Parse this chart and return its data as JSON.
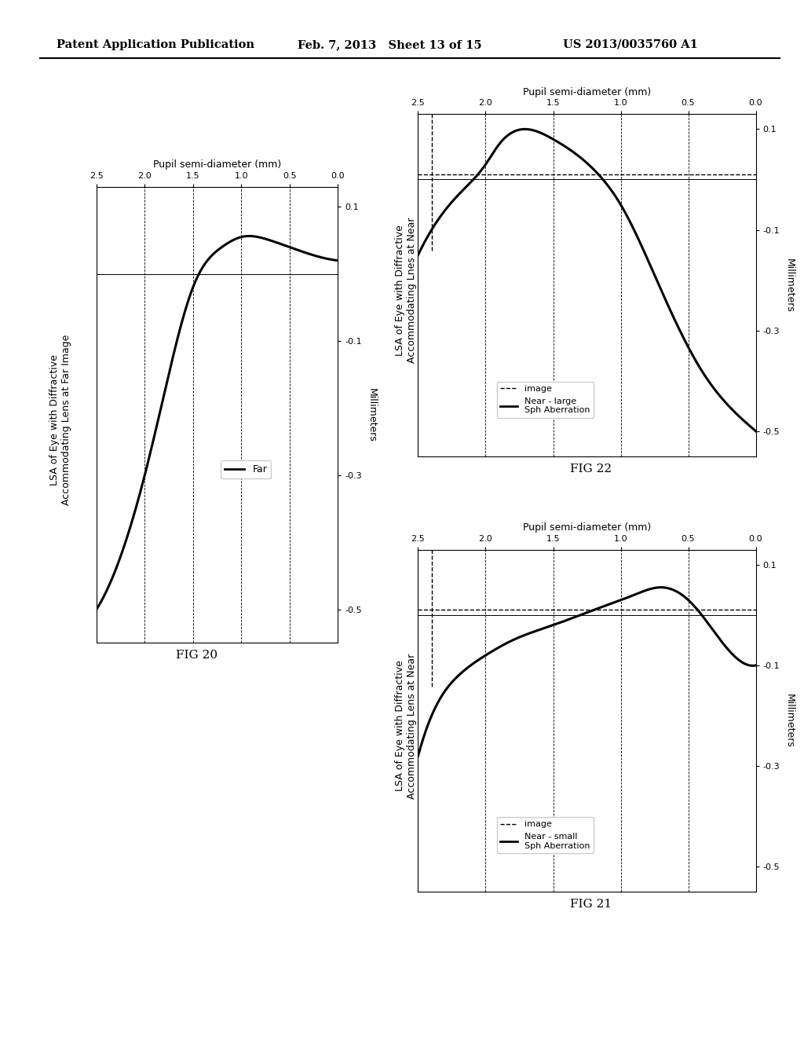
{
  "header_left": "Patent Application Publication",
  "header_mid": "Feb. 7, 2013   Sheet 13 of 15",
  "header_right": "US 2013/0035760 A1",
  "fig20": {
    "title_line1": "LSA of Eye with Diffractive",
    "title_line2": "Accommodating Lens at Far Image",
    "xlabel": "Pupil semi-diameter (mm)",
    "ylabel": "Millimeters",
    "legend_label": "Far",
    "fignum": "FIG 20"
  },
  "fig21": {
    "title_line1": "LSA of Eye with Diffractive",
    "title_line2": "Accommodating Lens at Near",
    "xlabel": "Pupil semi-diameter (mm)",
    "ylabel": "Millimeters",
    "legend_label1": "image",
    "legend_label2": "Near - small\nSph Aberration",
    "fignum": "FIG 21"
  },
  "fig22": {
    "title_line1": "LSA of Eye with Diffractive",
    "title_line2": "Accommodating Lnes at Near",
    "xlabel": "Pupil semi-diameter (mm)",
    "ylabel": "Millimeters",
    "legend_label1": "image",
    "legend_label2": "Near - large\nSph Aberration",
    "fignum": "FIG 22"
  },
  "background_color": "#ffffff"
}
